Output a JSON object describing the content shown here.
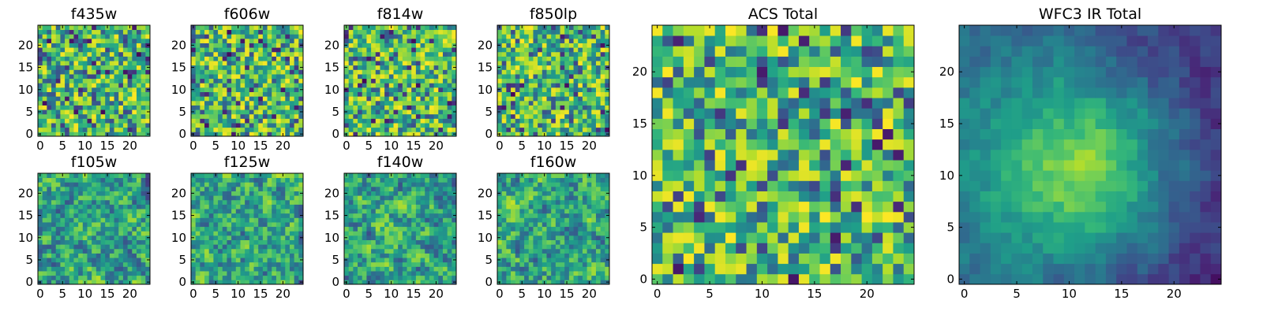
{
  "chart_data": [
    {
      "type": "heatmap",
      "title": "f435w",
      "xticks": [
        0,
        5,
        10,
        15,
        20
      ],
      "yticks": [
        0,
        5,
        10,
        15,
        20
      ],
      "xlim": [
        -0.5,
        24.5
      ],
      "ylim": [
        -0.5,
        24.5
      ],
      "grid_size": 25,
      "colormap": "viridis",
      "pattern": "noise",
      "seed": 11
    },
    {
      "type": "heatmap",
      "title": "f606w",
      "xticks": [
        0,
        5,
        10,
        15,
        20
      ],
      "yticks": [
        0,
        5,
        10,
        15,
        20
      ],
      "xlim": [
        -0.5,
        24.5
      ],
      "ylim": [
        -0.5,
        24.5
      ],
      "grid_size": 25,
      "colormap": "viridis",
      "pattern": "noise",
      "seed": 23
    },
    {
      "type": "heatmap",
      "title": "f814w",
      "xticks": [
        0,
        5,
        10,
        15,
        20
      ],
      "yticks": [
        0,
        5,
        10,
        15,
        20
      ],
      "xlim": [
        -0.5,
        24.5
      ],
      "ylim": [
        -0.5,
        24.5
      ],
      "grid_size": 25,
      "colormap": "viridis",
      "pattern": "noise",
      "seed": 37
    },
    {
      "type": "heatmap",
      "title": "f850lp",
      "xticks": [
        0,
        5,
        10,
        15,
        20
      ],
      "yticks": [
        0,
        5,
        10,
        15,
        20
      ],
      "xlim": [
        -0.5,
        24.5
      ],
      "ylim": [
        -0.5,
        24.5
      ],
      "grid_size": 25,
      "colormap": "viridis",
      "pattern": "noise",
      "seed": 41
    },
    {
      "type": "heatmap",
      "title": "f105w",
      "xticks": [
        0,
        5,
        10,
        15,
        20
      ],
      "yticks": [
        0,
        5,
        10,
        15,
        20
      ],
      "xlim": [
        -0.5,
        24.5
      ],
      "ylim": [
        -0.5,
        24.5
      ],
      "grid_size": 25,
      "colormap": "viridis",
      "pattern": "smooth",
      "seed": 53
    },
    {
      "type": "heatmap",
      "title": "f125w",
      "xticks": [
        0,
        5,
        10,
        15,
        20
      ],
      "yticks": [
        0,
        5,
        10,
        15,
        20
      ],
      "xlim": [
        -0.5,
        24.5
      ],
      "ylim": [
        -0.5,
        24.5
      ],
      "grid_size": 25,
      "colormap": "viridis",
      "pattern": "smooth",
      "seed": 61
    },
    {
      "type": "heatmap",
      "title": "f140w",
      "xticks": [
        0,
        5,
        10,
        15,
        20
      ],
      "yticks": [
        0,
        5,
        10,
        15,
        20
      ],
      "xlim": [
        -0.5,
        24.5
      ],
      "ylim": [
        -0.5,
        24.5
      ],
      "grid_size": 25,
      "colormap": "viridis",
      "pattern": "smooth",
      "seed": 71
    },
    {
      "type": "heatmap",
      "title": "f160w",
      "xticks": [
        0,
        5,
        10,
        15,
        20
      ],
      "yticks": [
        0,
        5,
        10,
        15,
        20
      ],
      "xlim": [
        -0.5,
        24.5
      ],
      "ylim": [
        -0.5,
        24.5
      ],
      "grid_size": 25,
      "colormap": "viridis",
      "pattern": "smooth",
      "seed": 83
    },
    {
      "type": "heatmap",
      "title": "ACS Total",
      "xticks": [
        0,
        5,
        10,
        15,
        20
      ],
      "yticks": [
        0,
        5,
        10,
        15,
        20
      ],
      "xlim": [
        -0.5,
        24.5
      ],
      "ylim": [
        -0.5,
        24.5
      ],
      "grid_size": 25,
      "colormap": "viridis",
      "pattern": "noise",
      "seed": 97
    },
    {
      "type": "heatmap",
      "title": "WFC3 IR Total",
      "xticks": [
        0,
        5,
        10,
        15,
        20
      ],
      "yticks": [
        0,
        5,
        10,
        15,
        20
      ],
      "xlim": [
        -0.5,
        24.5
      ],
      "ylim": [
        -0.5,
        24.5
      ],
      "grid_size": 25,
      "colormap": "viridis",
      "pattern": "gradient",
      "seed": 101
    }
  ]
}
